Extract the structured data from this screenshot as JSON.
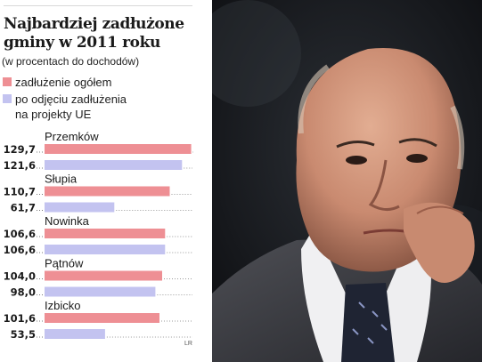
{
  "infographic": {
    "title_lines": [
      "Najbardziej zadłużone",
      "gminy w 2011 roku"
    ],
    "subtitle": "(w procentach do dochodów)",
    "legend": [
      {
        "label_lines": [
          "zadłużenie ogółem"
        ],
        "color": "#ee8f94"
      },
      {
        "label_lines": [
          "po odjęciu zadłużenia",
          "na projekty UE"
        ],
        "color": "#c3c3f0"
      }
    ],
    "credit": "LR"
  },
  "chart_data": {
    "type": "bar",
    "orientation": "horizontal",
    "categories": [
      "Przemków",
      "Słupia",
      "Nowinka",
      "Pątnów",
      "Izbicko"
    ],
    "series": [
      {
        "name": "zadłużenie ogółem",
        "color": "#ee8f94",
        "values": [
          129.7,
          110.7,
          106.6,
          104.0,
          101.6
        ],
        "labels": [
          "129,7",
          "110,7",
          "106,6",
          "104,0",
          "101,6"
        ]
      },
      {
        "name": "po odjęciu zadłużenia na projekty UE",
        "color": "#c3c3f0",
        "values": [
          121.6,
          61.7,
          106.6,
          98.0,
          53.5
        ],
        "labels": [
          "121,6",
          "61,7",
          "106,6",
          "98,0",
          "53,5"
        ]
      }
    ],
    "xlim": [
      0,
      135
    ],
    "title": "Najbardziej zadłużone gminy w 2011 roku"
  },
  "photo": {
    "description_icon": "portrait-photo"
  }
}
